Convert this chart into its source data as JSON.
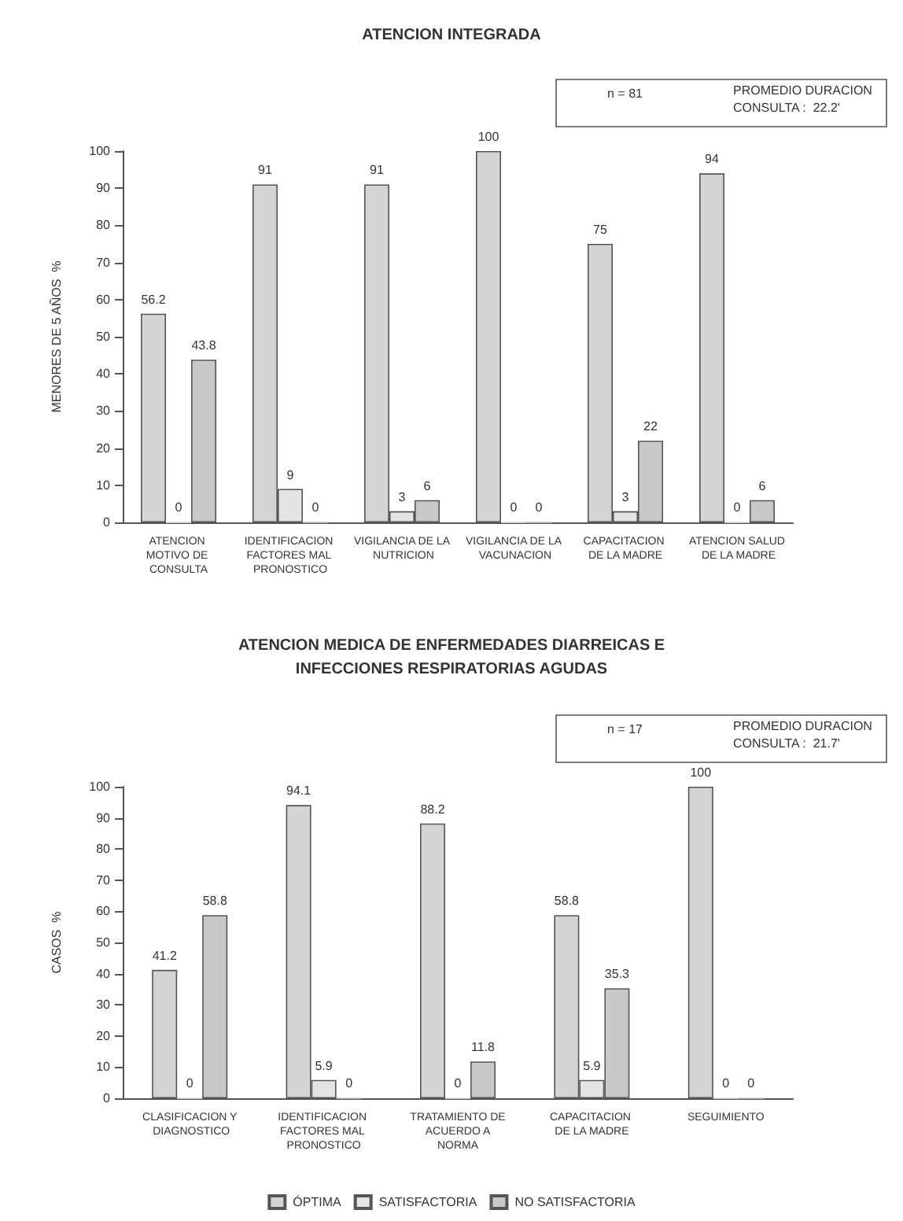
{
  "chart_data": [
    {
      "type": "bar",
      "title": "ATENCION INTEGRADA",
      "ylabel": "MENORES DE 5 AÑOS  %",
      "annotations": [
        "n = 81",
        "PROMEDIO DURACION\nCONSULTA :  22.2'"
      ],
      "categories": [
        "ATENCION MOTIVO DE CONSULTA",
        "IDENTIFICACION FACTORES MAL PRONOSTICO",
        "VIGILANCIA DE LA NUTRICION",
        "VIGILANCIA DE LA VACUNACION",
        "CAPACITACION DE LA MADRE",
        "ATENCION SALUD DE LA MADRE"
      ],
      "series": [
        {
          "color": "#d4d4d4",
          "values": [
            56.2,
            91,
            91,
            100,
            75,
            94
          ]
        },
        {
          "color": "#e4e4e4",
          "values": [
            0,
            9,
            3,
            0,
            3,
            0
          ]
        },
        {
          "color": "#c8c8c8",
          "values": [
            43.8,
            0,
            6,
            0,
            22,
            6
          ]
        }
      ],
      "ylim": [
        0,
        100
      ],
      "yticks": [
        0,
        10,
        20,
        30,
        40,
        50,
        60,
        70,
        80,
        90,
        100
      ],
      "grid": false,
      "legend": false,
      "data_labels": true
    },
    {
      "type": "bar",
      "title": "ATENCION MEDICA DE ENFERMEDADES DIARREICAS E\nINFECCIONES RESPIRATORIAS AGUDAS",
      "ylabel": "CASOS  %",
      "annotations": [
        "n = 17",
        "PROMEDIO DURACION\nCONSULTA :  21.7'"
      ],
      "categories": [
        "CLASIFICACION Y DIAGNOSTICO",
        "IDENTIFICACION FACTORES MAL PRONOSTICO",
        "TRATAMIENTO DE ACUERDO A NORMA",
        "CAPACITACION DE LA MADRE",
        "SEGUIMIENTO"
      ],
      "series": [
        {
          "name": "ÓPTIMA",
          "color": "#d4d4d4",
          "values": [
            41.2,
            94.1,
            88.2,
            58.8,
            100
          ]
        },
        {
          "name": "SATISFACTORIA",
          "color": "#e4e4e4",
          "values": [
            0,
            5.9,
            0,
            5.9,
            0
          ]
        },
        {
          "name": "NO SATISFACTORIA",
          "color": "#c8c8c8",
          "values": [
            58.8,
            0,
            11.8,
            35.3,
            0
          ]
        }
      ],
      "ylim": [
        0,
        100
      ],
      "yticks": [
        0,
        10,
        20,
        30,
        40,
        50,
        60,
        70,
        80,
        90,
        100
      ],
      "grid": false,
      "legend": "bottom",
      "data_labels": true
    }
  ]
}
